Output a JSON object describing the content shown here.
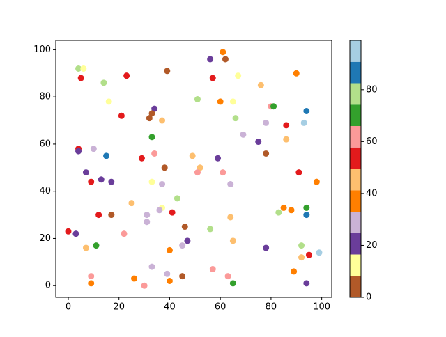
{
  "chart_data": {
    "type": "scatter",
    "x": [
      4,
      6,
      5,
      23,
      39,
      56,
      61,
      62,
      57,
      67,
      90,
      14,
      76,
      16,
      34,
      33,
      32,
      21,
      37,
      51,
      60,
      65,
      80,
      81,
      94,
      66,
      86,
      78,
      93,
      69,
      33,
      75,
      86,
      78,
      4,
      4,
      10,
      15,
      29,
      49,
      34,
      59,
      38,
      52,
      51,
      61,
      91,
      7,
      9,
      13,
      17,
      33,
      37,
      64,
      98,
      43,
      25,
      37,
      36,
      12,
      17,
      31,
      31,
      41,
      83,
      85,
      88,
      94,
      94,
      64,
      46,
      56,
      0,
      3,
      22,
      47,
      65,
      11,
      7,
      45,
      40,
      78,
      92,
      99,
      95,
      92,
      57,
      33,
      89,
      39,
      9,
      45,
      63,
      26,
      40,
      9,
      30,
      65,
      94
    ],
    "y": [
      92,
      92,
      88,
      89,
      91,
      96,
      99,
      96,
      88,
      89,
      90,
      86,
      85,
      78,
      75,
      73,
      71,
      72,
      70,
      79,
      78,
      78,
      76,
      76,
      74,
      71,
      68,
      69,
      69,
      64,
      63,
      61,
      62,
      56,
      58,
      57,
      58,
      55,
      54,
      55,
      56,
      54,
      50,
      50,
      48,
      48,
      48,
      48,
      44,
      45,
      44,
      44,
      43,
      43,
      44,
      37,
      35,
      33,
      32,
      30,
      30,
      30,
      27,
      31,
      31,
      33,
      32,
      33,
      30,
      29,
      25,
      24,
      23,
      22,
      22,
      19,
      19,
      17,
      16,
      17,
      15,
      16,
      17,
      14,
      13,
      12,
      7,
      8,
      6,
      5,
      4,
      4,
      4,
      3,
      2,
      1,
      0,
      1,
      1
    ],
    "c": [
      78,
      12,
      54,
      54,
      4,
      21,
      37,
      4,
      54,
      12,
      37,
      78,
      45,
      12,
      21,
      4,
      4,
      54,
      45,
      78,
      37,
      12,
      62,
      70,
      87,
      78,
      54,
      29,
      95,
      29,
      70,
      21,
      45,
      4,
      54,
      21,
      29,
      87,
      54,
      45,
      62,
      21,
      4,
      45,
      62,
      62,
      54,
      21,
      54,
      21,
      21,
      12,
      29,
      29,
      37,
      78,
      45,
      12,
      29,
      54,
      4,
      29,
      29,
      54,
      78,
      37,
      37,
      70,
      87,
      45,
      4,
      78,
      54,
      21,
      62,
      21,
      45,
      70,
      45,
      29,
      37,
      21,
      78,
      95,
      54,
      45,
      62,
      29,
      37,
      29,
      62,
      4,
      62,
      37,
      37,
      37,
      62,
      70,
      21
    ],
    "xlim": [
      -4.95,
      103.95
    ],
    "ylim": [
      -4.95,
      103.95
    ],
    "xticks": [
      0,
      20,
      40,
      60,
      80,
      100
    ],
    "yticks": [
      0,
      20,
      40,
      60,
      80,
      100
    ],
    "colorbar": {
      "colors": [
        "#b15928",
        "#ffff99",
        "#6a3d9a",
        "#cab2d6",
        "#ff7f00",
        "#fdbf6f",
        "#e31a1c",
        "#fb9a99",
        "#33a02c",
        "#b2df8a",
        "#1f78b4",
        "#a6cee3"
      ],
      "lim": [
        0,
        99
      ],
      "ticks": [
        0,
        20,
        40,
        60,
        80
      ]
    }
  }
}
